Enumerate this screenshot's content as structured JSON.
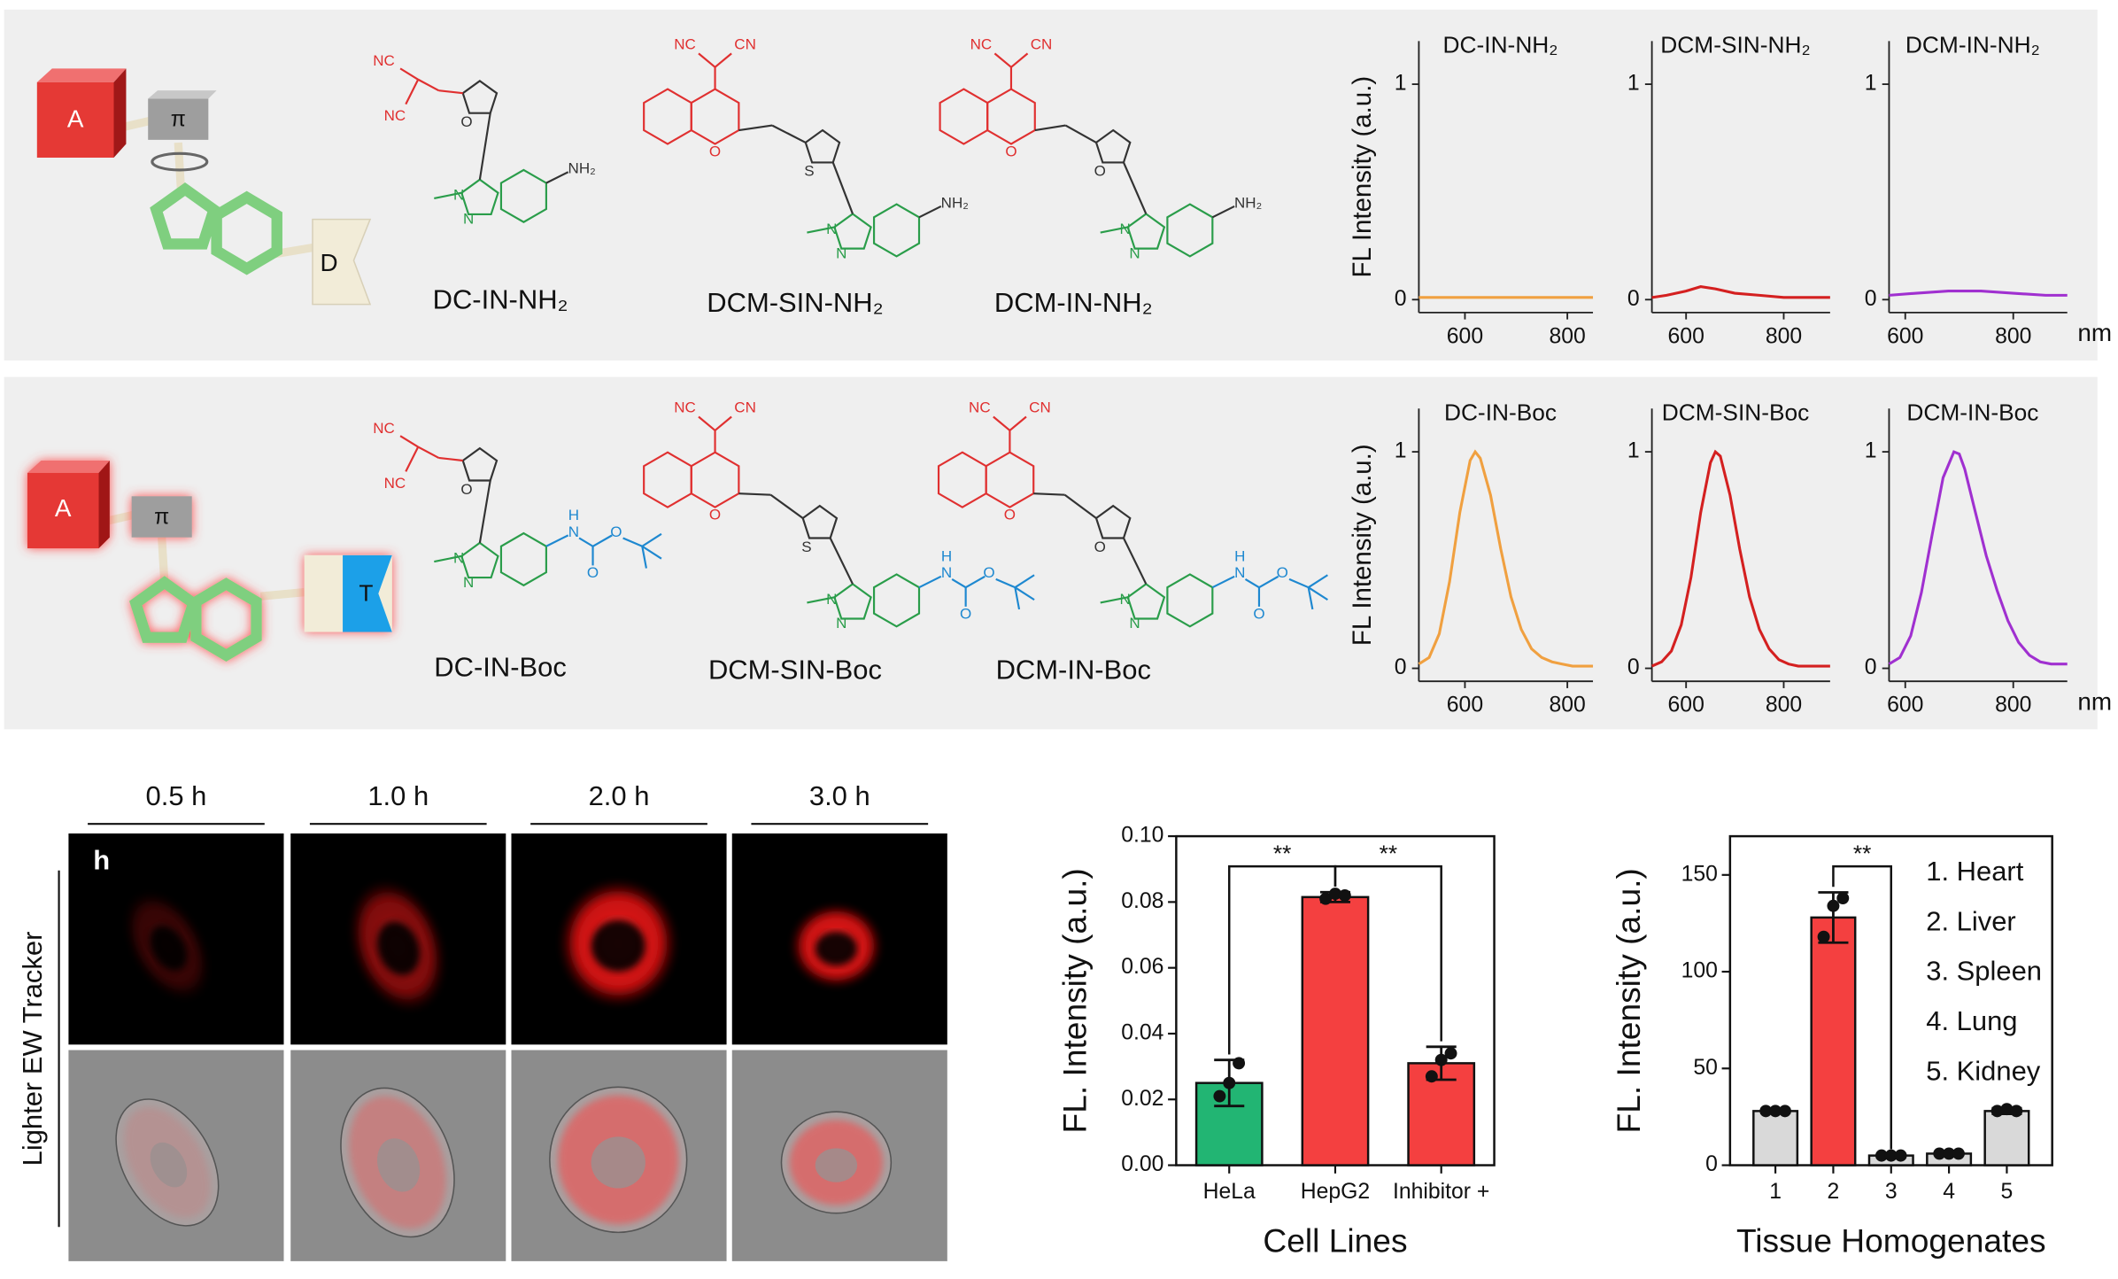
{
  "chart_data": [
    {
      "type": "line",
      "title": "DC-IN-NH₂",
      "ylabel": "FL Intensity (a.u.)",
      "x": [
        510,
        600,
        700,
        800,
        850
      ],
      "values": [
        0.01,
        0.01,
        0.01,
        0.01,
        0.01
      ],
      "color": "#f0a040",
      "xlim": [
        510,
        850
      ],
      "ylim": [
        -0.06,
        1.2
      ],
      "xticks": [
        600,
        800
      ],
      "yticks": [
        0,
        1
      ]
    },
    {
      "type": "line",
      "title": "DCM-SIN-NH₂",
      "x": [
        530,
        560,
        600,
        630,
        660,
        700,
        750,
        800,
        850,
        895
      ],
      "values": [
        0.01,
        0.02,
        0.04,
        0.06,
        0.05,
        0.03,
        0.02,
        0.01,
        0.01,
        0.01
      ],
      "color": "#d42020",
      "xlim": [
        530,
        895
      ],
      "ylim": [
        -0.06,
        1.2
      ],
      "xticks": [
        600,
        800
      ],
      "yticks": [
        0,
        1
      ]
    },
    {
      "type": "line",
      "title": "DCM-IN-NH₂",
      "xlabel": "nm",
      "x": [
        570,
        620,
        680,
        740,
        800,
        860,
        900
      ],
      "values": [
        0.02,
        0.03,
        0.04,
        0.04,
        0.03,
        0.02,
        0.02
      ],
      "color": "#a030d0",
      "xlim": [
        570,
        900
      ],
      "ylim": [
        -0.06,
        1.2
      ],
      "xticks": [
        600,
        800
      ],
      "yticks": [
        0,
        1
      ]
    },
    {
      "type": "line",
      "title": "DC-IN-Boc",
      "ylabel": "FL Intensity (a.u.)",
      "x": [
        510,
        530,
        550,
        570,
        590,
        610,
        620,
        630,
        650,
        670,
        690,
        710,
        730,
        750,
        770,
        790,
        810,
        830,
        850
      ],
      "values": [
        0.02,
        0.05,
        0.16,
        0.4,
        0.72,
        0.96,
        1.0,
        0.97,
        0.8,
        0.55,
        0.33,
        0.18,
        0.09,
        0.05,
        0.03,
        0.02,
        0.01,
        0.01,
        0.01
      ],
      "color": "#f0a040",
      "xlim": [
        510,
        850
      ],
      "ylim": [
        -0.06,
        1.2
      ],
      "xticks": [
        600,
        800
      ],
      "yticks": [
        0,
        1
      ]
    },
    {
      "type": "line",
      "title": "DCM-SIN-Boc",
      "x": [
        530,
        550,
        570,
        590,
        610,
        630,
        650,
        660,
        670,
        690,
        710,
        730,
        750,
        770,
        790,
        810,
        830,
        850,
        870,
        895
      ],
      "values": [
        0.01,
        0.03,
        0.08,
        0.2,
        0.42,
        0.72,
        0.95,
        1.0,
        0.98,
        0.8,
        0.55,
        0.33,
        0.18,
        0.09,
        0.04,
        0.02,
        0.01,
        0.01,
        0.01,
        0.01
      ],
      "color": "#d42020",
      "xlim": [
        530,
        895
      ],
      "ylim": [
        -0.06,
        1.2
      ],
      "xticks": [
        600,
        800
      ],
      "yticks": [
        0,
        1
      ]
    },
    {
      "type": "line",
      "title": "DCM-IN-Boc",
      "xlabel": "nm",
      "x": [
        570,
        590,
        610,
        630,
        650,
        670,
        690,
        700,
        710,
        730,
        750,
        770,
        790,
        810,
        830,
        850,
        870,
        900
      ],
      "values": [
        0.02,
        0.05,
        0.15,
        0.35,
        0.62,
        0.88,
        1.0,
        0.99,
        0.92,
        0.72,
        0.52,
        0.36,
        0.22,
        0.12,
        0.06,
        0.03,
        0.02,
        0.02
      ],
      "color": "#a030d0",
      "xlim": [
        570,
        900
      ],
      "ylim": [
        -0.06,
        1.2
      ],
      "xticks": [
        600,
        800
      ],
      "yticks": [
        0,
        1
      ]
    },
    {
      "type": "bar",
      "xlabel": "Cell Lines",
      "ylabel": "FL. Intensity (a.u.)",
      "categories": [
        "HeLa",
        "HepG2",
        "Inhibitor +"
      ],
      "values": [
        0.025,
        0.0815,
        0.031
      ],
      "errors": [
        0.007,
        0.0015,
        0.005
      ],
      "points": [
        [
          0.021,
          0.025,
          0.031
        ],
        [
          0.081,
          0.0825,
          0.082
        ],
        [
          0.027,
          0.032,
          0.034
        ]
      ],
      "colors": [
        "#22b573",
        "#f44040",
        "#f44040"
      ],
      "ylim": [
        0,
        0.1
      ],
      "yticks": [
        {
          "value": 0,
          "label": "0.00"
        },
        {
          "value": 0.02,
          "label": "0.02"
        },
        {
          "value": 0.04,
          "label": "0.04"
        },
        {
          "value": 0.06,
          "label": "0.06"
        },
        {
          "value": 0.08,
          "label": "0.08"
        },
        {
          "value": 0.1,
          "label": "0.10"
        }
      ],
      "annotations": [
        "**",
        "**"
      ]
    },
    {
      "type": "bar",
      "xlabel": "Tissue Homogenates",
      "ylabel": "FL. Intensity (a.u.)",
      "categories": [
        "1",
        "2",
        "3",
        "4",
        "5"
      ],
      "values": [
        28,
        128,
        5,
        6,
        28
      ],
      "errors": [
        1,
        13,
        0.5,
        0.5,
        1.5
      ],
      "points": [
        [
          28,
          28,
          28
        ],
        [
          118,
          134,
          138
        ],
        [
          5,
          5,
          5
        ],
        [
          6,
          6,
          6
        ],
        [
          28,
          29,
          28
        ]
      ],
      "colors": [
        "#d9d9d9",
        "#f44040",
        "#d9d9d9",
        "#d9d9d9",
        "#d9d9d9"
      ],
      "ylim": [
        0,
        170
      ],
      "yticks": [
        0,
        50,
        100,
        150
      ],
      "annotations": [
        "**"
      ],
      "legend_items": [
        "1. Heart",
        "2. Liver",
        "3. Spleen",
        "4. Lung",
        "5. Kidney"
      ]
    }
  ],
  "schematic": {
    "row1": [
      "A",
      "π",
      "D"
    ],
    "row2": [
      "A",
      "π",
      "T"
    ]
  },
  "molecules": [
    {
      "name": "DC-IN-NH₂",
      "atoms": [
        "NC",
        "NC",
        "O",
        "N",
        "N",
        "NH₂"
      ]
    },
    {
      "name": "DCM-SIN-NH₂",
      "atoms": [
        "NC",
        "CN",
        "O",
        "S",
        "N",
        "N",
        "NH₂"
      ]
    },
    {
      "name": "DCM-IN-NH₂",
      "atoms": [
        "NC",
        "CN",
        "O",
        "O",
        "N",
        "N",
        "NH₂"
      ]
    },
    {
      "name": "DC-IN-Boc",
      "atoms": [
        "NC",
        "NC",
        "O",
        "N",
        "N",
        "H",
        "N",
        "O",
        "O"
      ]
    },
    {
      "name": "DCM-SIN-Boc",
      "atoms": [
        "NC",
        "CN",
        "O",
        "S",
        "N",
        "N",
        "H",
        "N",
        "O",
        "O"
      ]
    },
    {
      "name": "DCM-IN-Boc",
      "atoms": [
        "NC",
        "CN",
        "O",
        "O",
        "N",
        "N",
        "H",
        "N",
        "O",
        "O"
      ]
    }
  ],
  "imaging": {
    "times": [
      "0.5 h",
      "1.0 h",
      "2.0 h",
      "3.0 h"
    ],
    "panel_label": "h",
    "row_label": "Lighter EW Tracker"
  }
}
